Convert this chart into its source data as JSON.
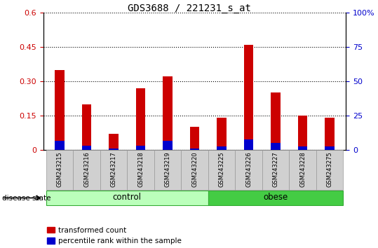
{
  "title": "GDS3688 / 221231_s_at",
  "samples": [
    "GSM243215",
    "GSM243216",
    "GSM243217",
    "GSM243218",
    "GSM243219",
    "GSM243220",
    "GSM243225",
    "GSM243226",
    "GSM243227",
    "GSM243228",
    "GSM243275"
  ],
  "red_values": [
    0.35,
    0.2,
    0.07,
    0.27,
    0.32,
    0.1,
    0.14,
    0.46,
    0.25,
    0.15,
    0.14
  ],
  "blue_values": [
    0.04,
    0.018,
    0.006,
    0.02,
    0.04,
    0.006,
    0.015,
    0.045,
    0.03,
    0.015,
    0.015
  ],
  "red_color": "#cc0000",
  "blue_color": "#0000cc",
  "left_ylim": [
    0,
    0.6
  ],
  "right_ylim": [
    0,
    100
  ],
  "left_yticks": [
    0,
    0.15,
    0.3,
    0.45,
    0.6
  ],
  "left_yticklabels": [
    "0",
    "0.15",
    "0.30",
    "0.45",
    "0.6"
  ],
  "right_yticks": [
    0,
    25,
    50,
    75,
    100
  ],
  "right_yticklabels": [
    "0",
    "25",
    "50",
    "75",
    "100%"
  ],
  "left_ycolor": "#cc0000",
  "right_ycolor": "#0000cc",
  "control_color": "#bbffbb",
  "obese_color": "#44cc44",
  "group_label": "disease state",
  "bar_width": 0.35,
  "label_red": "transformed count",
  "label_blue": "percentile rank within the sample",
  "tick_label_bg": "#d0d0d0"
}
